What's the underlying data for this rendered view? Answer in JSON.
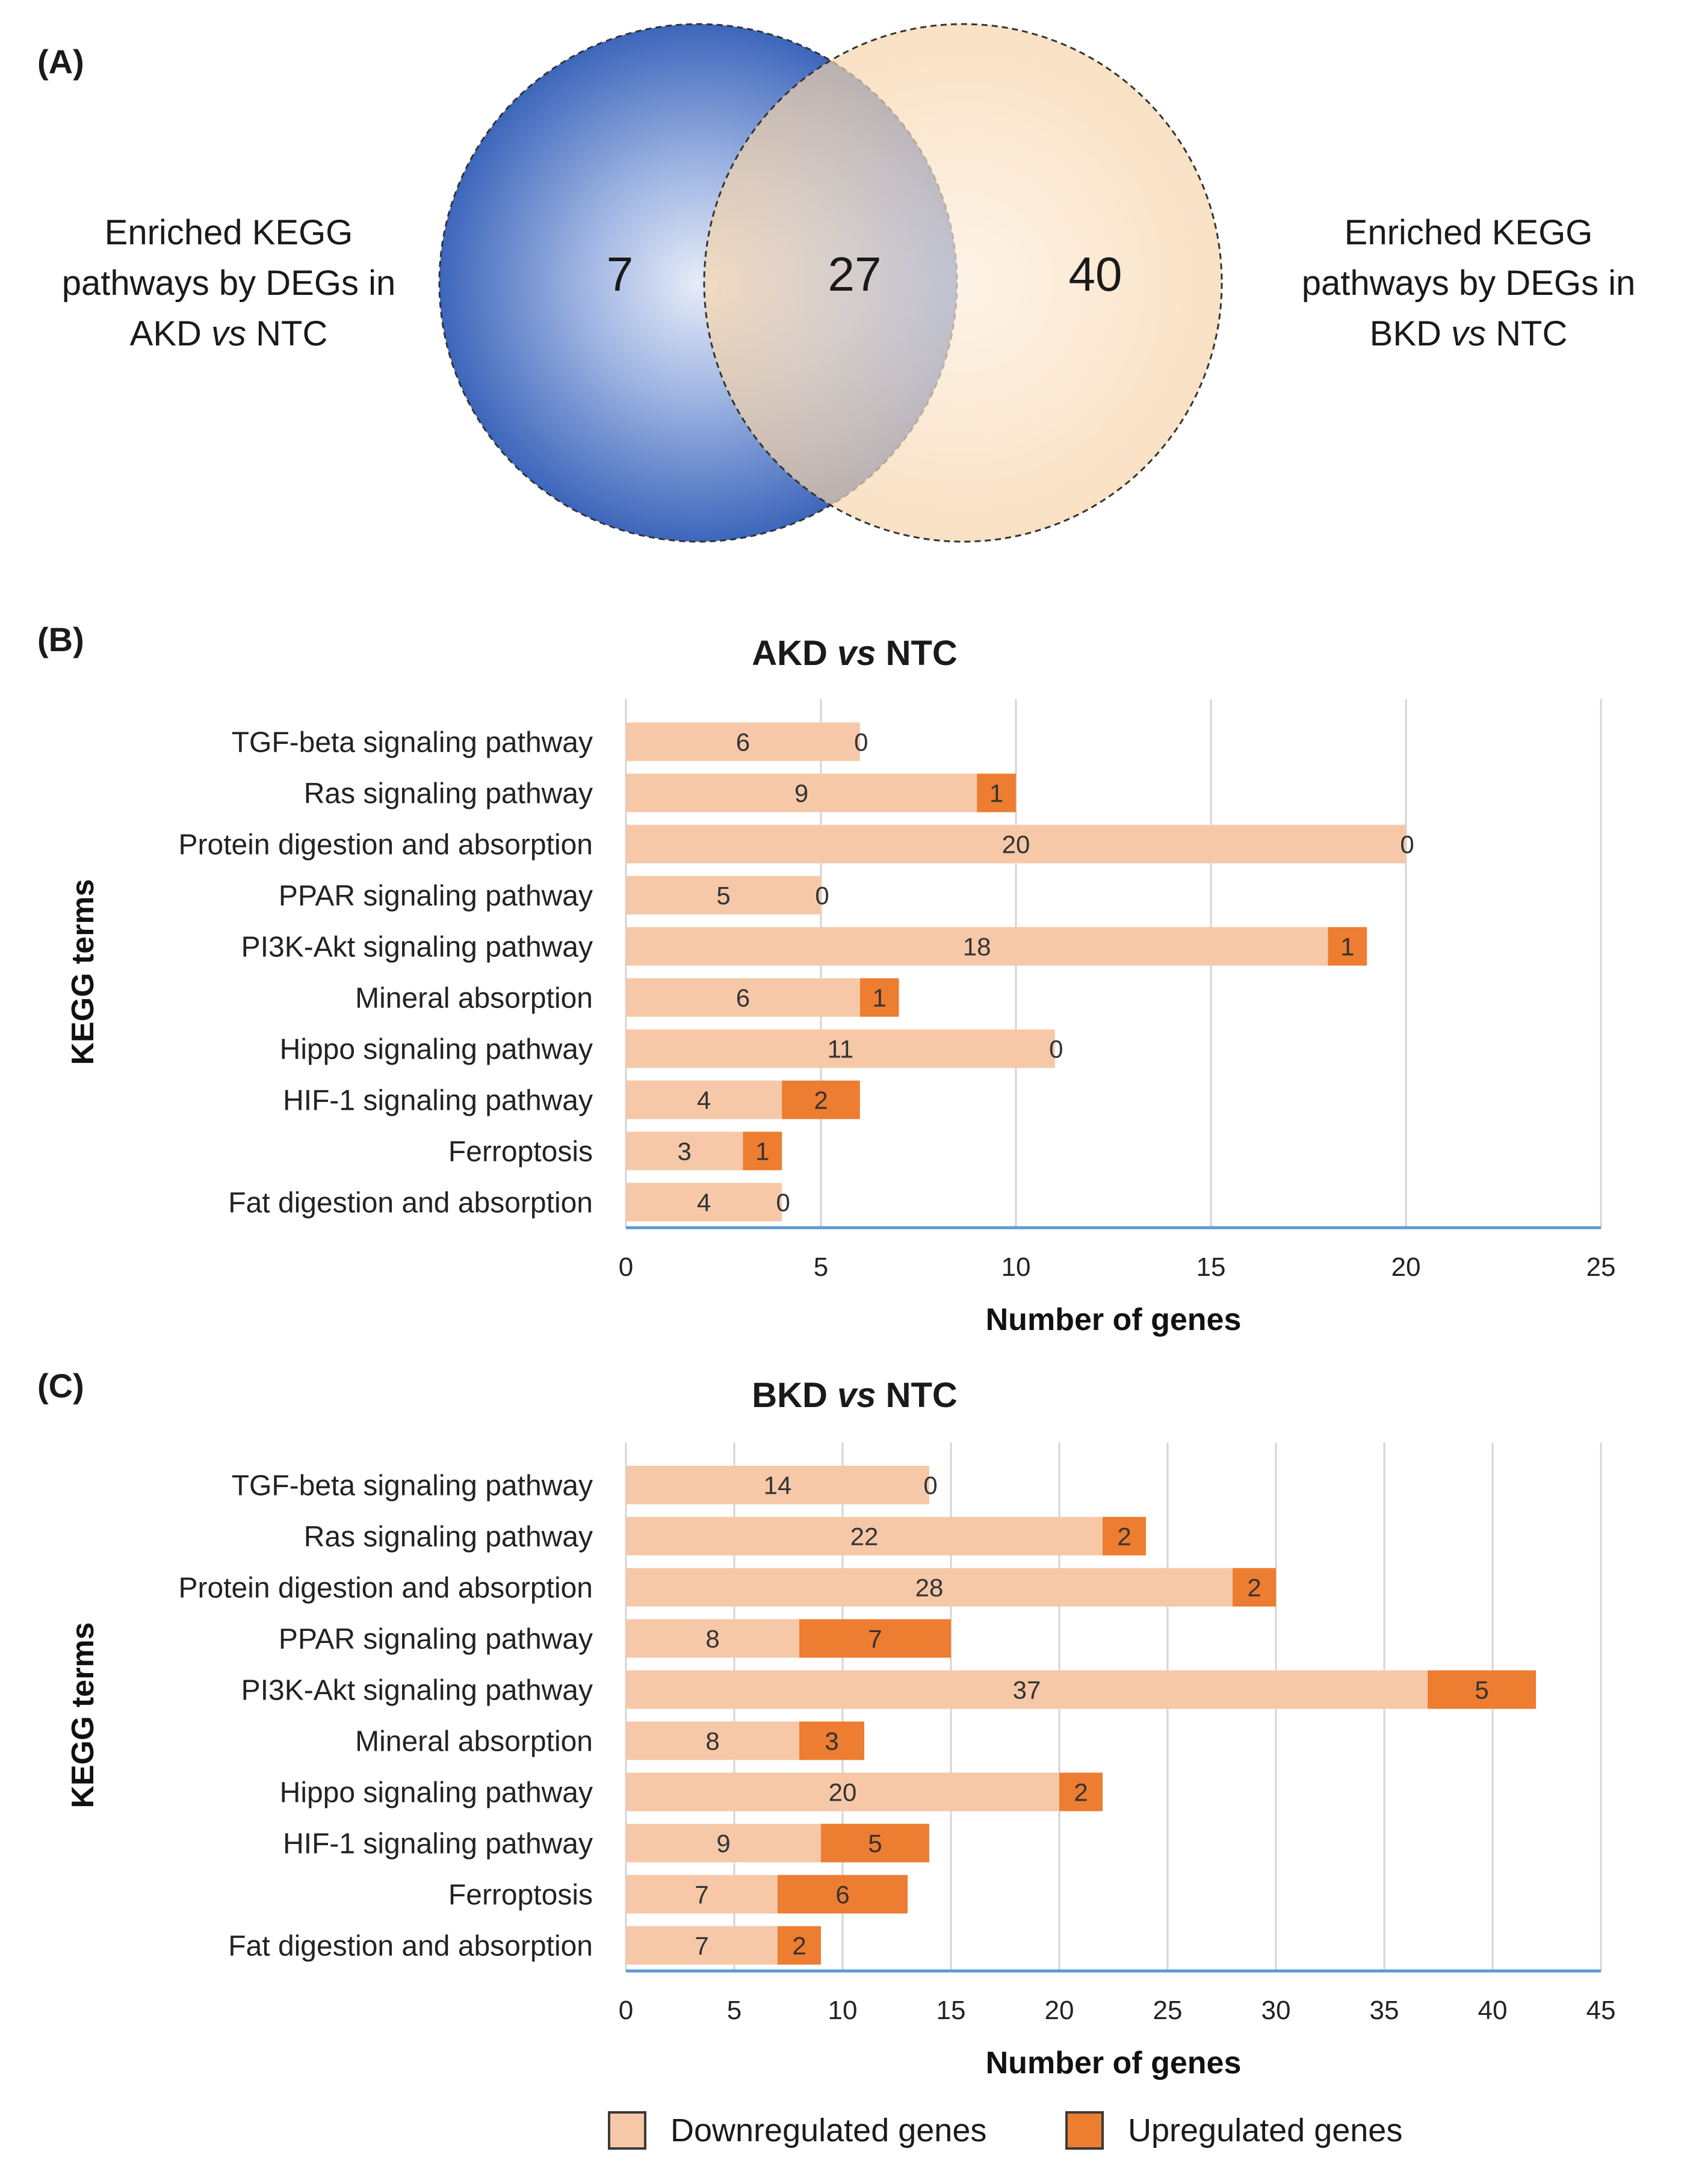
{
  "panel_a": {
    "label": "(A)",
    "left_set": {
      "line1": "Enriched KEGG",
      "line2": "pathways by DEGs in",
      "line3_pre": "AKD ",
      "line3_em": "vs",
      "line3_post": " NTC",
      "count": "7"
    },
    "right_set": {
      "line1": "Enriched KEGG",
      "line2": "pathways by DEGs in",
      "line3_pre": "BKD ",
      "line3_em": "vs",
      "line3_post": " NTC",
      "count": "40"
    },
    "overlap_count": "27",
    "colors": {
      "left": "#4a72c0",
      "right": "#f6d3a8"
    }
  },
  "panel_b": {
    "label": "(B)",
    "title_pre": "AKD ",
    "title_em": "vs",
    "title_post": " NTC"
  },
  "panel_c": {
    "label": "(C)",
    "title_pre": "BKD ",
    "title_em": "vs",
    "title_post": " NTC"
  },
  "legend": {
    "down_label": "Downregulated genes",
    "up_label": "Upregulated genes",
    "down_color": "#f6c8a8",
    "up_color": "#ed7d31"
  },
  "chart_data": [
    {
      "type": "bar",
      "orientation": "horizontal",
      "stacked": true,
      "title": "AKD vs NTC",
      "xlabel": "Number of genes",
      "ylabel": "KEGG terms",
      "xlim": [
        0,
        25
      ],
      "xticks": [
        0,
        5,
        10,
        15,
        20,
        25
      ],
      "grid": true,
      "categories": [
        "TGF-beta signaling pathway",
        "Ras signaling pathway",
        "Protein digestion and absorption",
        "PPAR signaling pathway",
        "PI3K-Akt signaling pathway",
        "Mineral absorption",
        "Hippo signaling pathway",
        "HIF-1 signaling pathway",
        "Ferroptosis",
        "Fat digestion and absorption"
      ],
      "series": [
        {
          "name": "Downregulated genes",
          "color": "#f6c8a8",
          "values": [
            6,
            9,
            20,
            5,
            18,
            6,
            11,
            4,
            3,
            4
          ]
        },
        {
          "name": "Upregulated genes",
          "color": "#ed7d31",
          "values": [
            0,
            1,
            0,
            0,
            1,
            1,
            0,
            2,
            1,
            0
          ]
        }
      ]
    },
    {
      "type": "bar",
      "orientation": "horizontal",
      "stacked": true,
      "title": "BKD vs NTC",
      "xlabel": "Number of genes",
      "ylabel": "KEGG terms",
      "xlim": [
        0,
        45
      ],
      "xticks": [
        0,
        5,
        10,
        15,
        20,
        25,
        30,
        35,
        40,
        45
      ],
      "grid": true,
      "categories": [
        "TGF-beta signaling pathway",
        "Ras signaling pathway",
        "Protein digestion and absorption",
        "PPAR signaling pathway",
        "PI3K-Akt signaling pathway",
        "Mineral absorption",
        "Hippo signaling pathway",
        "HIF-1 signaling pathway",
        "Ferroptosis",
        "Fat digestion and absorption"
      ],
      "series": [
        {
          "name": "Downregulated genes",
          "color": "#f6c8a8",
          "values": [
            14,
            22,
            28,
            8,
            37,
            8,
            20,
            9,
            7,
            7
          ]
        },
        {
          "name": "Upregulated genes",
          "color": "#ed7d31",
          "values": [
            0,
            2,
            2,
            7,
            5,
            3,
            2,
            5,
            6,
            2
          ]
        }
      ]
    }
  ]
}
